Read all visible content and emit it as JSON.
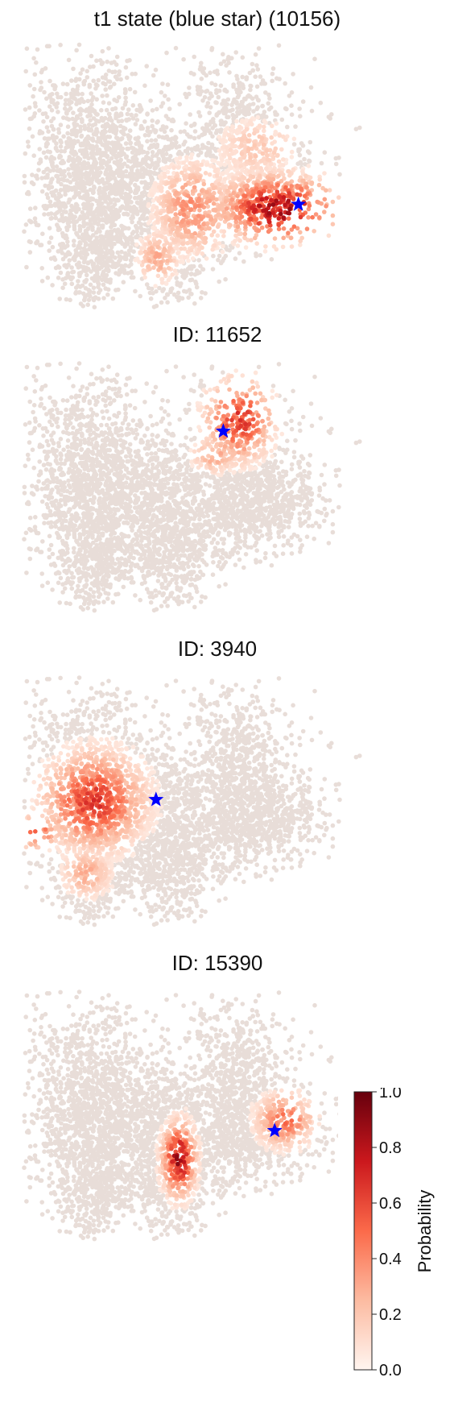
{
  "chart_data": [
    {
      "type": "scatter",
      "title": "t1 state (blue star) (10156)",
      "marker": "blue star",
      "hotspots": [
        {
          "cx": 0.74,
          "cy": 0.62,
          "rx": 0.14,
          "ry": 0.1,
          "peak": 0.95
        },
        {
          "cx": 0.5,
          "cy": 0.62,
          "rx": 0.09,
          "ry": 0.14,
          "peak": 0.45
        },
        {
          "cx": 0.68,
          "cy": 0.4,
          "rx": 0.1,
          "ry": 0.1,
          "peak": 0.22
        },
        {
          "cx": 0.4,
          "cy": 0.8,
          "rx": 0.05,
          "ry": 0.08,
          "peak": 0.35
        }
      ],
      "star": {
        "x": 0.797,
        "y": 0.605
      }
    },
    {
      "type": "scatter",
      "title": "ID: 11652",
      "marker": "blue star",
      "hotspots": [
        {
          "cx": 0.63,
          "cy": 0.24,
          "rx": 0.08,
          "ry": 0.13,
          "peak": 0.75
        },
        {
          "cx": 0.56,
          "cy": 0.38,
          "rx": 0.06,
          "ry": 0.06,
          "peak": 0.35
        }
      ],
      "star": {
        "x": 0.585,
        "y": 0.285
      }
    },
    {
      "type": "scatter",
      "title": "ID: 3940",
      "marker": "blue star",
      "hotspots": [
        {
          "cx": 0.22,
          "cy": 0.5,
          "rx": 0.12,
          "ry": 0.16,
          "peak": 0.72
        },
        {
          "cx": 0.06,
          "cy": 0.62,
          "rx": 0.05,
          "ry": 0.06,
          "peak": 0.6
        },
        {
          "cx": 0.2,
          "cy": 0.78,
          "rx": 0.06,
          "ry": 0.08,
          "peak": 0.35
        }
      ],
      "star": {
        "x": 0.395,
        "y": 0.495
      }
    },
    {
      "type": "scatter",
      "title": "ID: 15390",
      "marker": "blue star",
      "hotspots": [
        {
          "cx": 0.46,
          "cy": 0.67,
          "rx": 0.04,
          "ry": 0.12,
          "peak": 0.95
        },
        {
          "cx": 0.76,
          "cy": 0.52,
          "rx": 0.07,
          "ry": 0.09,
          "peak": 0.55
        }
      ],
      "star": {
        "x": 0.73,
        "y": 0.56
      }
    }
  ],
  "colorbar": {
    "label": "Probability",
    "ticks": [
      "0.0",
      "0.2",
      "0.4",
      "0.6",
      "0.8",
      "1.0"
    ],
    "min": 0.0,
    "max": 1.0,
    "colors": [
      "#fff5f0",
      "#fcbba1",
      "#fb6a4a",
      "#cb181d",
      "#67000d"
    ]
  },
  "star_color": "#0000ff",
  "background_point_color": "#e8ddd8"
}
